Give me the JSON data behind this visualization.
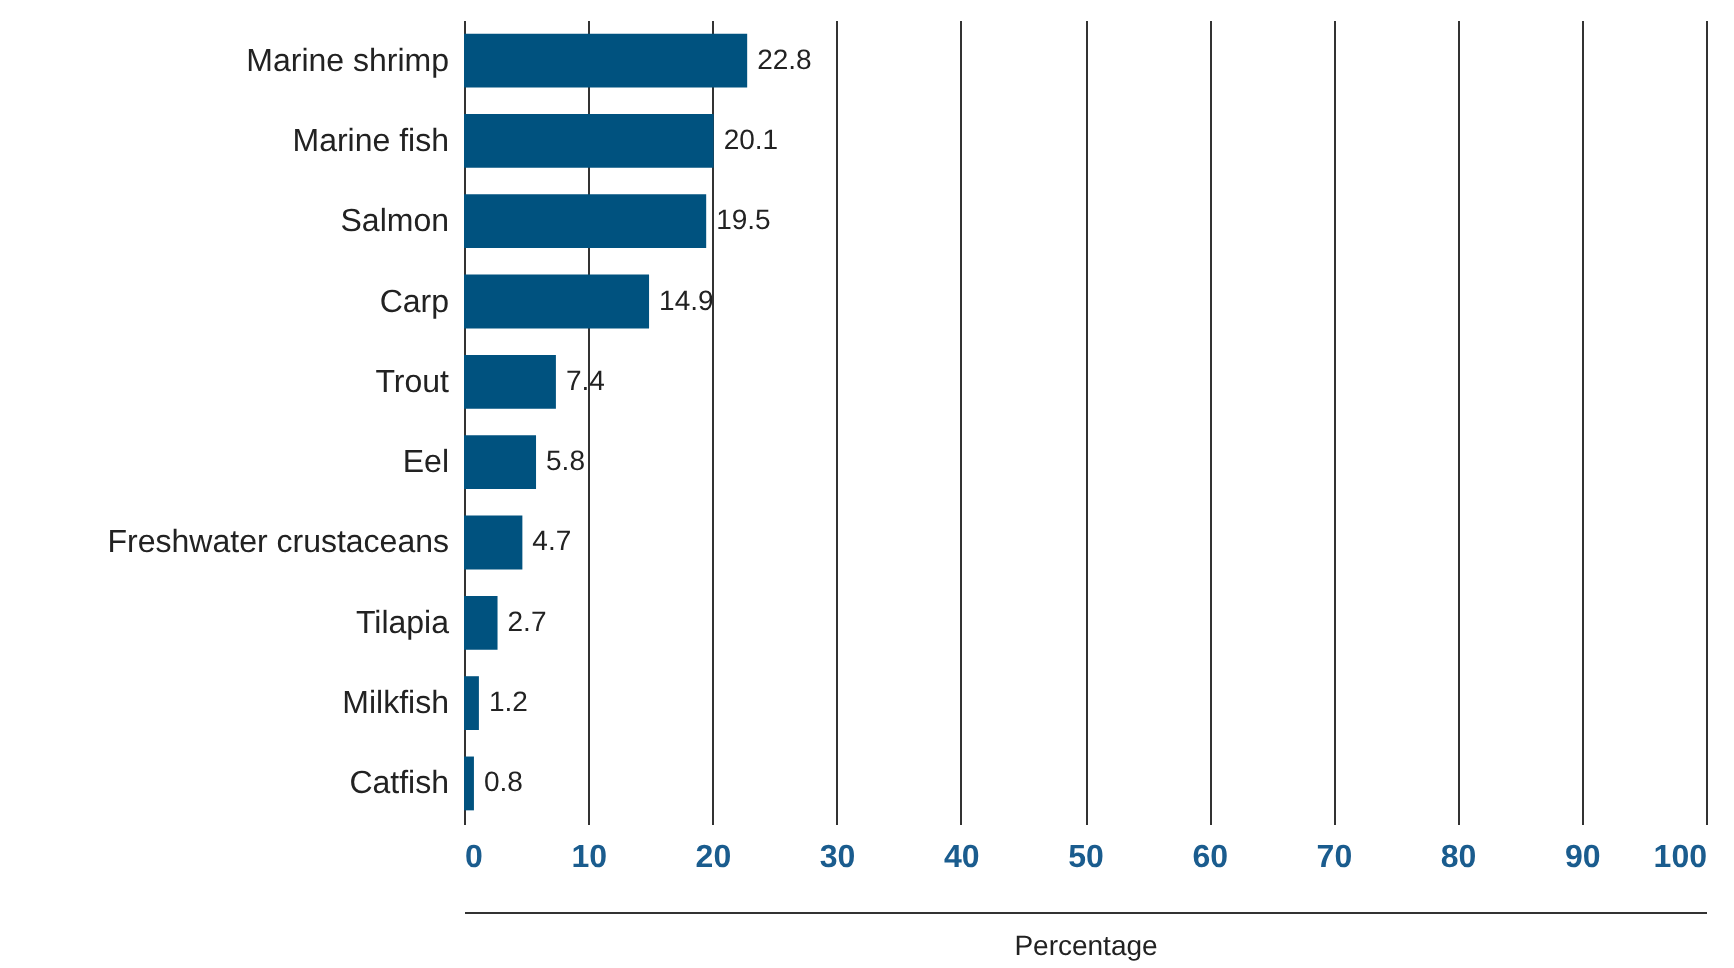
{
  "chart_data": {
    "type": "bar",
    "orientation": "horizontal",
    "xlabel": "Percentage",
    "categories": [
      "Marine shrimp",
      "Marine fish",
      "Salmon",
      "Carp",
      "Trout",
      "Eel",
      "Freshwater crustaceans",
      "Tilapia",
      "Milkfish",
      "Catfish"
    ],
    "values": [
      22.8,
      20.1,
      19.5,
      14.9,
      7.4,
      5.8,
      4.7,
      2.7,
      1.2,
      0.8
    ],
    "color": "#00527f",
    "xlim": [
      0,
      100
    ],
    "xticks": [
      0,
      10,
      20,
      30,
      40,
      50,
      60,
      70,
      80,
      90,
      100
    ],
    "grid": "x",
    "data_labels": true
  }
}
